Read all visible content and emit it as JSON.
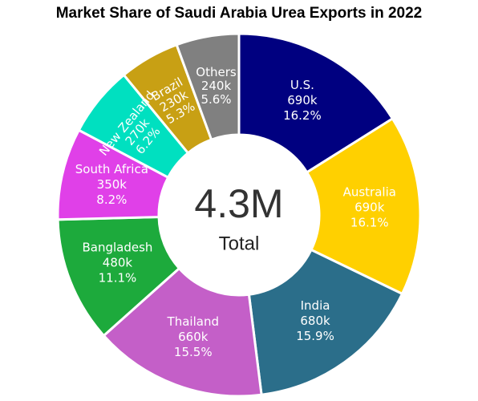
{
  "chart_data": {
    "type": "donut",
    "title": "Market Share of Saudi Arabia Urea Exports in 2022",
    "categories": [
      "U.S.",
      "Australia",
      "India",
      "Thailand",
      "Bangladesh",
      "South Africa",
      "New Zealand",
      "Brazil",
      "Others"
    ],
    "values": [
      690000,
      690000,
      680000,
      660000,
      480000,
      350000,
      270000,
      230000,
      240000
    ],
    "value_labels": [
      "690k",
      "690k",
      "680k",
      "660k",
      "480k",
      "350k",
      "270k",
      "230k",
      "240k"
    ],
    "share_labels": [
      "16.2%",
      "16.1%",
      "15.9%",
      "15.5%",
      "11.1%",
      "8.2%",
      "6.2%",
      "5.3%",
      "5.6%"
    ],
    "colors": [
      "#000080",
      "#ffd000",
      "#2b6e8a",
      "#c45fc8",
      "#1daa3c",
      "#e040e8",
      "#00e0c0",
      "#c8a014",
      "#808080"
    ],
    "center_value": "4.3M",
    "center_caption": "Total"
  }
}
